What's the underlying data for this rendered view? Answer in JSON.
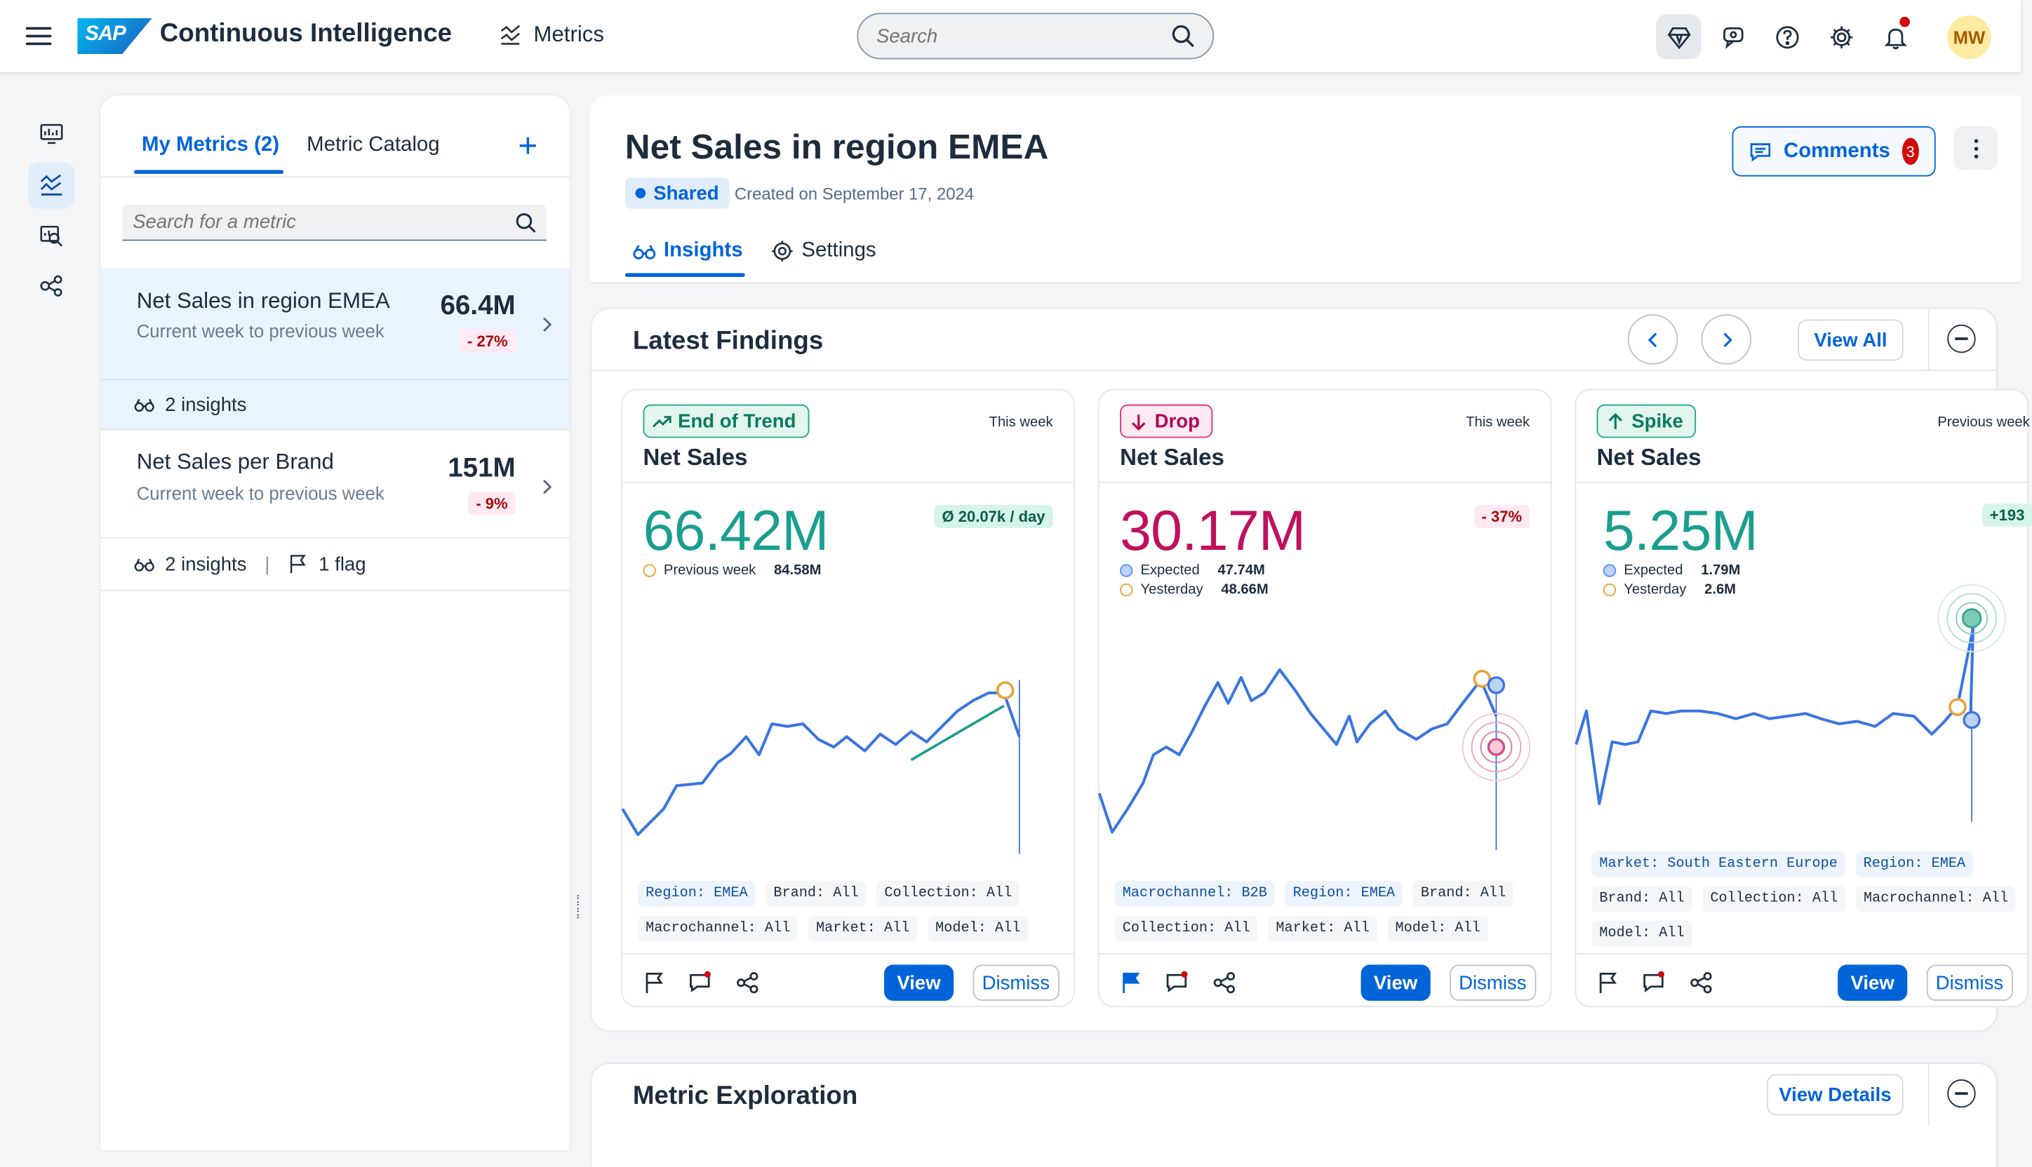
{
  "shell": {
    "brand": "SAP",
    "app_title": "Continuous Intelligence",
    "section": "Metrics",
    "search_placeholder": "Search",
    "avatar_initials": "MW",
    "icons": [
      "diamond-icon",
      "feedback-icon",
      "help-icon",
      "settings-icon",
      "bell-icon"
    ]
  },
  "sidenav": {
    "items": [
      "dashboard-icon",
      "metrics-icon",
      "search-chart-icon",
      "network-icon"
    ]
  },
  "left_panel": {
    "tabs": [
      {
        "label": "My Metrics (2)",
        "active": true
      },
      {
        "label": "Metric Catalog",
        "active": false
      }
    ],
    "add": "+",
    "search_placeholder": "Search for a metric",
    "metrics": [
      {
        "name": "Net Sales in region EMEA",
        "subtitle": "Current week to previous week",
        "value": "66.4M",
        "change": "- 27%",
        "insights": "2 insights",
        "selected": true
      },
      {
        "name": "Net Sales per Brand",
        "subtitle": "Current week to previous week",
        "value": "151M",
        "change": "- 9%",
        "insights": "2 insights",
        "flags": "1 flag",
        "separator": "|"
      }
    ]
  },
  "main": {
    "title": "Net Sales in region EMEA",
    "status": "Shared",
    "created": "Created on September 17, 2024",
    "comments_label": "Comments",
    "comments_count": "3",
    "tabs": [
      {
        "label": "Insights",
        "active": true
      },
      {
        "label": "Settings",
        "active": false
      }
    ]
  },
  "findings": {
    "title": "Latest Findings",
    "view_all": "View All",
    "cards": [
      {
        "tag": "End of Trend",
        "when": "This week",
        "name": "Net Sales",
        "value": "66.42M",
        "chip": "Ø 20.07k / day",
        "legend": [
          {
            "label": "Previous week",
            "value": "84.58M",
            "color": "#e9a23b"
          }
        ],
        "filters": [
          "Region: EMEA",
          "Brand: All",
          "Collection: All",
          "Macrochannel: All",
          "Market: All",
          "Model: All"
        ],
        "view": "View",
        "dismiss": "Dismiss"
      },
      {
        "tag": "Drop",
        "when": "This week",
        "name": "Net Sales",
        "value": "30.17M",
        "chip": "- 37%",
        "legend": [
          {
            "label": "Expected",
            "value": "47.74M",
            "color": "#5b8ee8"
          },
          {
            "label": "Yesterday",
            "value": "48.66M",
            "color": "#e9a23b"
          }
        ],
        "filters": [
          "Macrochannel: B2B",
          "Region: EMEA",
          "Brand: All",
          "Collection: All",
          "Market: All",
          "Model: All"
        ],
        "view": "View",
        "dismiss": "Dismiss"
      },
      {
        "tag": "Spike",
        "when": "Previous week",
        "name": "Net Sales",
        "value": "5.25M",
        "chip": "+193",
        "legend": [
          {
            "label": "Expected",
            "value": "1.79M",
            "color": "#5b8ee8"
          },
          {
            "label": "Yesterday",
            "value": "2.6M",
            "color": "#e9a23b"
          }
        ],
        "filters": [
          "Market: South Eastern Europe",
          "Region: EMEA",
          "Brand: All",
          "Collection: All",
          "Macrochannel: All",
          "Model: All"
        ],
        "view": "View",
        "dismiss": "Dismiss"
      }
    ]
  },
  "exploration": {
    "title": "Metric Exploration",
    "view_details": "View Details"
  },
  "colors": {
    "accent": "#0064d9",
    "line": "#3a75e0",
    "trend_value": "#1a9e8f",
    "drop_value": "#c0105f",
    "negative": "#aa0808"
  }
}
